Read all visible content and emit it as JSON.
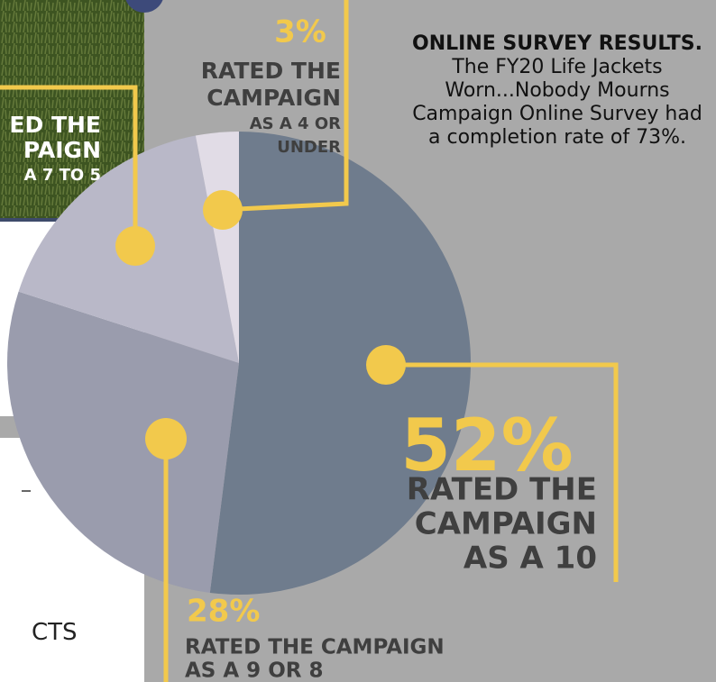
{
  "chart_data": {
    "type": "pie",
    "values": [
      52,
      28,
      17,
      3
    ],
    "value_labels": [
      "52%",
      "28%",
      null,
      "3%"
    ],
    "colors": [
      "#6f7c8d",
      "#9a9cad",
      "#b9b8c8",
      "#e1dce6"
    ],
    "slice_labels": [
      [
        "RATED THE",
        "CAMPAIGN",
        "AS A 10"
      ],
      [
        "RATED THE CAMPAIGN",
        "AS A 9 OR 8"
      ],
      [
        "ED THE",
        "PAIGN",
        "A 7 TO 5"
      ],
      [
        "RATED THE",
        "CAMPAIGN",
        "AS A 4 OR",
        "UNDER"
      ]
    ],
    "title": "ONLINE SURVEY RESULTS.",
    "description": "The FY20 Life Jackets Worn...Nobody Mourns Campaign Online Survey had a completion rate of 73%.",
    "side_text": "CTS"
  }
}
